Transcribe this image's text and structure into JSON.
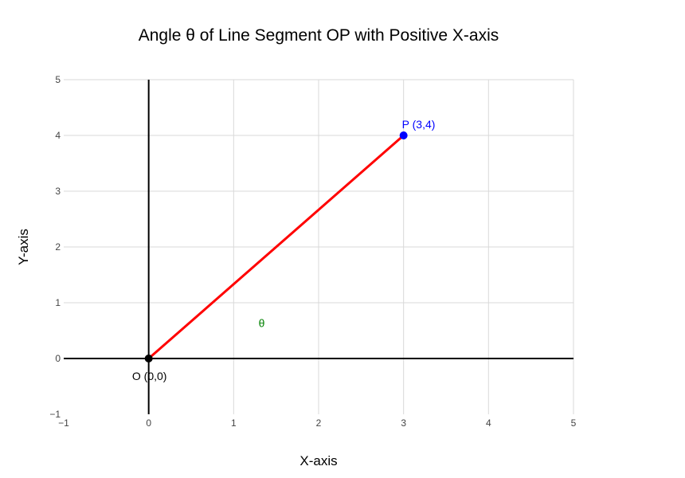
{
  "chart_data": {
    "type": "line",
    "title": "Angle θ of Line Segment OP with Positive X-axis",
    "xlabel": "X-axis",
    "ylabel": "Y-axis",
    "xlim": [
      -1,
      5
    ],
    "ylim": [
      -1,
      5
    ],
    "x_ticks": [
      "−1",
      "0",
      "1",
      "2",
      "3",
      "4",
      "5"
    ],
    "y_ticks": [
      "−1",
      "0",
      "1",
      "2",
      "3",
      "4",
      "5"
    ],
    "grid": true,
    "legend": "none",
    "series": [
      {
        "x": [
          0,
          3
        ],
        "y": [
          0,
          4
        ],
        "color": "#ff0000"
      }
    ],
    "points": [
      {
        "x": 0,
        "y": 0,
        "label": "O (0,0)",
        "color": "#000000",
        "label_color": "#000000"
      },
      {
        "x": 3,
        "y": 4,
        "label": "P (3,4)",
        "color": "#0000ff",
        "label_color": "#0000ff"
      }
    ],
    "annotations": [
      {
        "x": 1.33,
        "y": 0.65,
        "text": "θ",
        "color": "#008000"
      }
    ]
  }
}
